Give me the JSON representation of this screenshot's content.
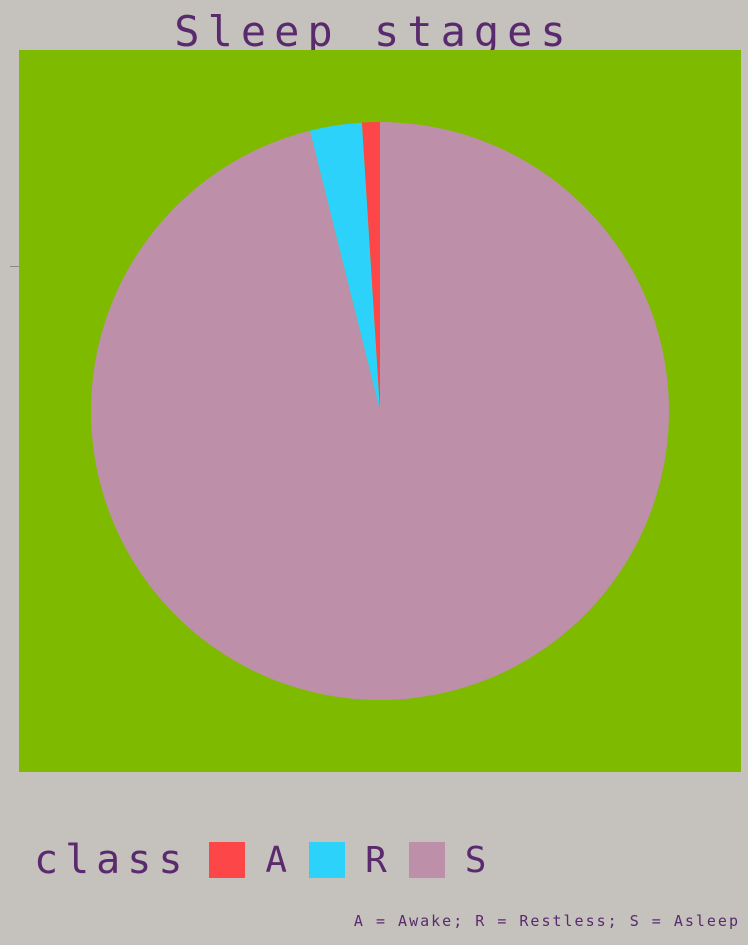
{
  "chart_data": {
    "type": "pie",
    "title": "Sleep stages",
    "legend_title": "class",
    "caption": "A = Awake; R = Restless; S = Asleep",
    "legend_position": "bottom-left",
    "background_color": "#7dba00",
    "slices": [
      {
        "label": "A",
        "value": 1.0,
        "color": "#fc4647"
      },
      {
        "label": "R",
        "value": 2.9,
        "color": "#2dd2fb"
      },
      {
        "label": "S",
        "value": 96.1,
        "color": "#be8fa9"
      }
    ]
  }
}
